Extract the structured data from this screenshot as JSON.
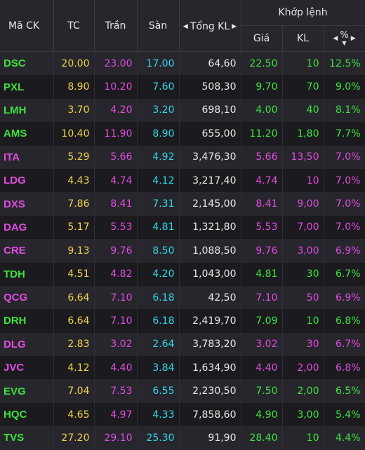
{
  "header": {
    "symbol": "Mã CK",
    "ref": "TC",
    "ceil": "Trần",
    "floor": "Sàn",
    "volume": "Tổng KL",
    "match_group": "Khớp lệnh",
    "price": "Giá",
    "qty": "KL",
    "pct": "%"
  },
  "colors": {
    "ref": "#f2d24b",
    "ceil": "#e14be0",
    "floor": "#33d7e8",
    "up": "#3fe23f"
  },
  "rows": [
    {
      "sym": "DSC",
      "tc": "20.00",
      "tran": "23.00",
      "san": "17.00",
      "vol": "64,60",
      "price": "22.50",
      "qty": "10",
      "pct": "12.5%",
      "status": "up"
    },
    {
      "sym": "PXL",
      "tc": "8.90",
      "tran": "10.20",
      "san": "7.60",
      "vol": "508,30",
      "price": "9.70",
      "qty": "70",
      "pct": "9.0%",
      "status": "up"
    },
    {
      "sym": "LMH",
      "tc": "3.70",
      "tran": "4.20",
      "san": "3.20",
      "vol": "698,10",
      "price": "4.00",
      "qty": "40",
      "pct": "8.1%",
      "status": "up"
    },
    {
      "sym": "AMS",
      "tc": "10.40",
      "tran": "11.90",
      "san": "8.90",
      "vol": "655,00",
      "price": "11.20",
      "qty": "1,80",
      "pct": "7.7%",
      "status": "up"
    },
    {
      "sym": "ITA",
      "tc": "5.29",
      "tran": "5.66",
      "san": "4.92",
      "vol": "3,476,30",
      "price": "5.66",
      "qty": "13,50",
      "pct": "7.0%",
      "status": "ceil"
    },
    {
      "sym": "LDG",
      "tc": "4.43",
      "tran": "4.74",
      "san": "4.12",
      "vol": "3,217,40",
      "price": "4.74",
      "qty": "10",
      "pct": "7.0%",
      "status": "ceil"
    },
    {
      "sym": "DXS",
      "tc": "7.86",
      "tran": "8.41",
      "san": "7.31",
      "vol": "2,145,00",
      "price": "8.41",
      "qty": "9,00",
      "pct": "7.0%",
      "status": "ceil"
    },
    {
      "sym": "DAG",
      "tc": "5.17",
      "tran": "5.53",
      "san": "4.81",
      "vol": "1,321,80",
      "price": "5.53",
      "qty": "7,00",
      "pct": "7.0%",
      "status": "ceil"
    },
    {
      "sym": "CRE",
      "tc": "9.13",
      "tran": "9.76",
      "san": "8.50",
      "vol": "1,088,50",
      "price": "9.76",
      "qty": "3,00",
      "pct": "6.9%",
      "status": "ceil"
    },
    {
      "sym": "TDH",
      "tc": "4.51",
      "tran": "4.82",
      "san": "4.20",
      "vol": "1,043,00",
      "price": "4.81",
      "qty": "30",
      "pct": "6.7%",
      "status": "up"
    },
    {
      "sym": "QCG",
      "tc": "6.64",
      "tran": "7.10",
      "san": "6.18",
      "vol": "42,50",
      "price": "7.10",
      "qty": "50",
      "pct": "6.9%",
      "status": "ceil"
    },
    {
      "sym": "DRH",
      "tc": "6.64",
      "tran": "7.10",
      "san": "6.18",
      "vol": "2,419,70",
      "price": "7.09",
      "qty": "10",
      "pct": "6.8%",
      "status": "up"
    },
    {
      "sym": "DLG",
      "tc": "2.83",
      "tran": "3.02",
      "san": "2.64",
      "vol": "3,783,20",
      "price": "3.02",
      "qty": "30",
      "pct": "6.7%",
      "status": "ceil"
    },
    {
      "sym": "JVC",
      "tc": "4.12",
      "tran": "4.40",
      "san": "3.84",
      "vol": "1,634,90",
      "price": "4.40",
      "qty": "2,00",
      "pct": "6.8%",
      "status": "ceil"
    },
    {
      "sym": "EVG",
      "tc": "7.04",
      "tran": "7.53",
      "san": "6.55",
      "vol": "2,230,50",
      "price": "7.50",
      "qty": "2,00",
      "pct": "6.5%",
      "status": "up"
    },
    {
      "sym": "HQC",
      "tc": "4.65",
      "tran": "4.97",
      "san": "4.33",
      "vol": "7,858,60",
      "price": "4.90",
      "qty": "3,00",
      "pct": "5.4%",
      "status": "up"
    },
    {
      "sym": "TVS",
      "tc": "27.20",
      "tran": "29.10",
      "san": "25.30",
      "vol": "91,90",
      "price": "28.40",
      "qty": "10",
      "pct": "4.4%",
      "status": "up"
    }
  ]
}
